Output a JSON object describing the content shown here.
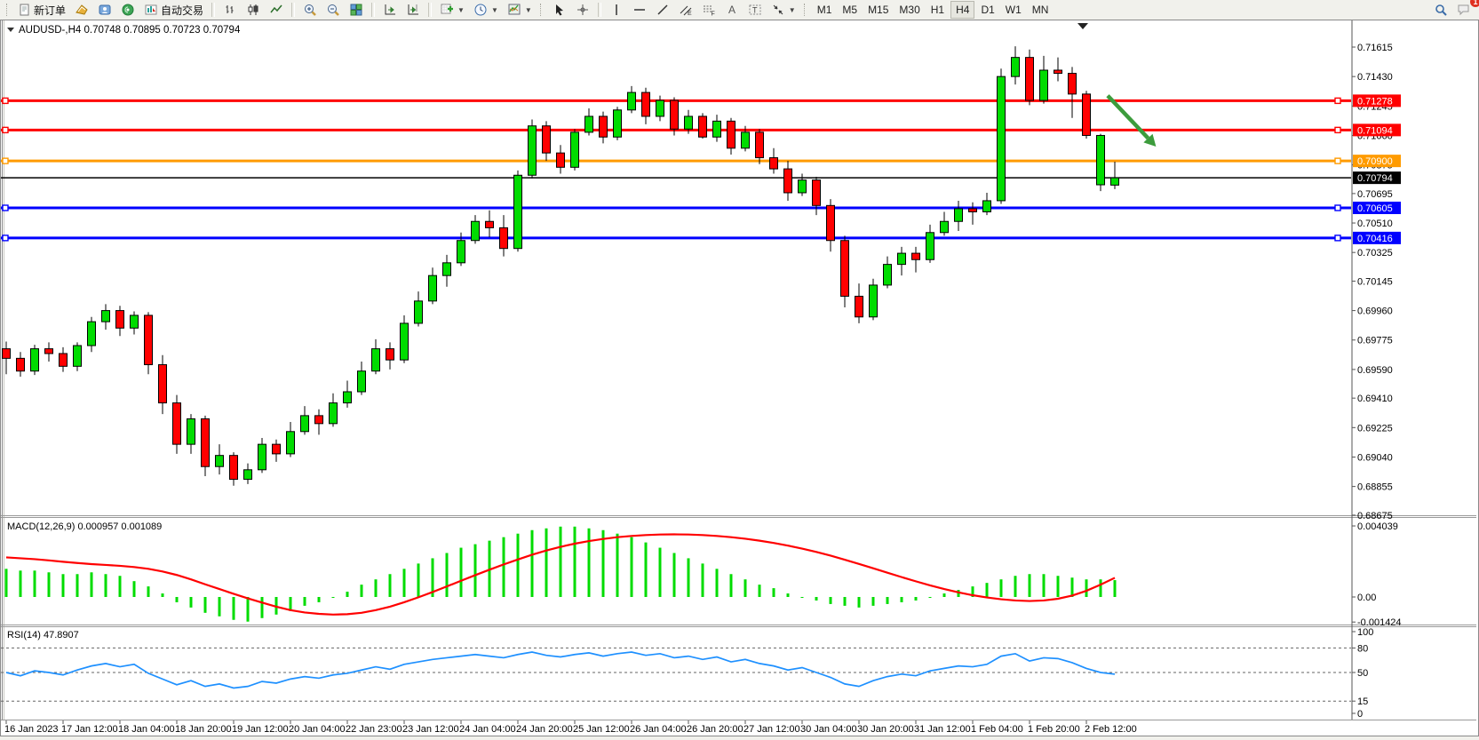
{
  "toolbar": {
    "new_order_label": "新订单",
    "autotrade_label": "自动交易",
    "icons": [
      "new-order",
      "new-chart",
      "profile",
      "signals",
      "autotrade",
      "bar-chart",
      "candlestick-chart",
      "line-chart",
      "zoom-in",
      "zoom-out",
      "tile-windows",
      "auto-scroll",
      "chart-shift",
      "indicators",
      "periods",
      "templates",
      "cursor",
      "crosshair",
      "vertical-line",
      "horizontal-line",
      "trendline",
      "equidistant-channel",
      "fibonacci",
      "text",
      "text-label",
      "arrows",
      "search",
      "notifications"
    ],
    "timeframes": [
      "M1",
      "M5",
      "M15",
      "M30",
      "H1",
      "H4",
      "D1",
      "W1",
      "MN"
    ],
    "active_timeframe": "H4",
    "notification_badge": "1"
  },
  "chart_header": {
    "symbol_info": "AUDUSD-,H4  0.70748 0.70895 0.70723 0.70794"
  },
  "price_axis": {
    "ticks": [
      "0.71615",
      "0.71430",
      "0.71245",
      "0.71060",
      "0.70875",
      "0.70695",
      "0.70510",
      "0.70325",
      "0.70145",
      "0.69960",
      "0.69775",
      "0.69590",
      "0.69410",
      "0.69225",
      "0.69040",
      "0.68855",
      "0.68675"
    ]
  },
  "levels": [
    {
      "label": "0.71278",
      "value": 0.71278,
      "color": "#ff0000",
      "width": 3,
      "handles": true,
      "type": "resistance"
    },
    {
      "label": "0.71094",
      "value": 0.71094,
      "color": "#ff0000",
      "width": 3,
      "handles": true,
      "type": "resistance"
    },
    {
      "label": "0.70900",
      "value": 0.709,
      "color": "#ff9b00",
      "width": 3,
      "handles": true,
      "type": "pivot"
    },
    {
      "label": "0.70794",
      "value": 0.70794,
      "color": "#000000",
      "width": 1.5,
      "handles": false,
      "type": "current-price"
    },
    {
      "label": "0.70605",
      "value": 0.70605,
      "color": "#0000ff",
      "width": 3,
      "handles": true,
      "type": "support"
    },
    {
      "label": "0.70416",
      "value": 0.70416,
      "color": "#0000ff",
      "width": 3,
      "handles": true,
      "type": "support"
    }
  ],
  "macd": {
    "label": "MACD(12,26,9) 0.000957 0.001089",
    "axis": [
      "0.004039",
      "0.00",
      "-0.001424"
    ]
  },
  "rsi": {
    "label": "RSI(14) 47.8907",
    "axis": [
      "100",
      "80",
      "50",
      "15",
      "0"
    ],
    "dashed_levels": [
      80,
      50,
      15
    ]
  },
  "time_axis": {
    "labels": [
      "16 Jan 2023",
      "17 Jan 12:00",
      "18 Jan 04:00",
      "18 Jan 20:00",
      "19 Jan 12:00",
      "20 Jan 04:00",
      "22 Jan 23:00",
      "23 Jan 12:00",
      "24 Jan 04:00",
      "24 Jan 20:00",
      "25 Jan 12:00",
      "26 Jan 04:00",
      "26 Jan 20:00",
      "27 Jan 12:00",
      "30 Jan 04:00",
      "30 Jan 20:00",
      "31 Jan 12:00",
      "1 Feb 04:00",
      "1 Feb 20:00",
      "2 Feb 12:00"
    ],
    "bars_per_label": 4
  },
  "chart_data": {
    "type": "candlestick",
    "title": "AUDUSD-,H4",
    "symbol": "AUDUSD-",
    "timeframe": "H4",
    "last_bar": {
      "open": 0.70748,
      "high": 0.70895,
      "low": 0.70723,
      "close": 0.70794
    },
    "ylim": [
      0.68675,
      0.71615
    ],
    "grid": false,
    "up_color": "#00dc00",
    "down_color": "#ff0000",
    "levels": [
      0.71278,
      0.71094,
      0.709,
      0.70794,
      0.70605,
      0.70416
    ],
    "arrow": {
      "from": {
        "bar": 77.5,
        "price": 0.7131
      },
      "to": {
        "bar": 80.9,
        "price": 0.7099
      },
      "color": "#3c9c3c"
    },
    "ohlc": [
      [
        0.6972,
        0.69765,
        0.6956,
        0.6966
      ],
      [
        0.6966,
        0.697,
        0.69545,
        0.6958
      ],
      [
        0.6958,
        0.69745,
        0.69555,
        0.6972
      ],
      [
        0.6972,
        0.6976,
        0.6964,
        0.6969
      ],
      [
        0.6969,
        0.6973,
        0.69575,
        0.6961
      ],
      [
        0.6961,
        0.6976,
        0.6958,
        0.6974
      ],
      [
        0.6974,
        0.6992,
        0.697,
        0.6989
      ],
      [
        0.6989,
        0.7,
        0.6984,
        0.6996
      ],
      [
        0.6996,
        0.6999,
        0.698,
        0.6985
      ],
      [
        0.6985,
        0.69955,
        0.6981,
        0.6993
      ],
      [
        0.6993,
        0.6995,
        0.6956,
        0.6962
      ],
      [
        0.6962,
        0.6968,
        0.6931,
        0.6938
      ],
      [
        0.6938,
        0.6943,
        0.6906,
        0.6912
      ],
      [
        0.6912,
        0.6931,
        0.6906,
        0.6928
      ],
      [
        0.6928,
        0.693,
        0.6892,
        0.6898
      ],
      [
        0.6898,
        0.6912,
        0.6893,
        0.6905
      ],
      [
        0.6905,
        0.6907,
        0.6886,
        0.689
      ],
      [
        0.689,
        0.69,
        0.6887,
        0.6896
      ],
      [
        0.6896,
        0.6916,
        0.6894,
        0.6912
      ],
      [
        0.6912,
        0.6915,
        0.6901,
        0.6906
      ],
      [
        0.6906,
        0.6926,
        0.6904,
        0.692
      ],
      [
        0.692,
        0.6936,
        0.6918,
        0.693
      ],
      [
        0.693,
        0.6934,
        0.6918,
        0.6925
      ],
      [
        0.6925,
        0.6944,
        0.6923,
        0.6938
      ],
      [
        0.6938,
        0.6952,
        0.6935,
        0.6945
      ],
      [
        0.6945,
        0.6964,
        0.6943,
        0.6958
      ],
      [
        0.6958,
        0.6978,
        0.6956,
        0.6972
      ],
      [
        0.6972,
        0.6976,
        0.6959,
        0.6965
      ],
      [
        0.6965,
        0.6993,
        0.6963,
        0.6988
      ],
      [
        0.6988,
        0.7008,
        0.6986,
        0.7002
      ],
      [
        0.7002,
        0.7023,
        0.7,
        0.7018
      ],
      [
        0.7018,
        0.7031,
        0.7011,
        0.7026
      ],
      [
        0.7026,
        0.7045,
        0.7024,
        0.704
      ],
      [
        0.704,
        0.7056,
        0.7038,
        0.7052
      ],
      [
        0.7052,
        0.7059,
        0.7042,
        0.7048
      ],
      [
        0.7048,
        0.7056,
        0.703,
        0.7035
      ],
      [
        0.7035,
        0.7084,
        0.7033,
        0.7081
      ],
      [
        0.7081,
        0.7116,
        0.7079,
        0.7112
      ],
      [
        0.7112,
        0.7115,
        0.709,
        0.7095
      ],
      [
        0.7095,
        0.71,
        0.7082,
        0.7086
      ],
      [
        0.7086,
        0.711,
        0.7084,
        0.7108
      ],
      [
        0.7108,
        0.7123,
        0.7106,
        0.7118
      ],
      [
        0.7118,
        0.7121,
        0.7101,
        0.7105
      ],
      [
        0.7105,
        0.7124,
        0.7103,
        0.7122
      ],
      [
        0.7122,
        0.7137,
        0.712,
        0.7133
      ],
      [
        0.7133,
        0.7136,
        0.7113,
        0.7118
      ],
      [
        0.7118,
        0.7131,
        0.7115,
        0.7128
      ],
      [
        0.7128,
        0.713,
        0.7106,
        0.711
      ],
      [
        0.711,
        0.7122,
        0.7107,
        0.7118
      ],
      [
        0.7118,
        0.712,
        0.7104,
        0.7105
      ],
      [
        0.7105,
        0.7119,
        0.7102,
        0.7115
      ],
      [
        0.7115,
        0.7117,
        0.7094,
        0.7098
      ],
      [
        0.7098,
        0.7112,
        0.7096,
        0.7108
      ],
      [
        0.7108,
        0.711,
        0.7088,
        0.7092
      ],
      [
        0.7092,
        0.7098,
        0.7082,
        0.7085
      ],
      [
        0.7085,
        0.709,
        0.7065,
        0.707
      ],
      [
        0.707,
        0.7082,
        0.7068,
        0.7078
      ],
      [
        0.7078,
        0.708,
        0.7056,
        0.7062
      ],
      [
        0.7062,
        0.7066,
        0.7033,
        0.704
      ],
      [
        0.704,
        0.7043,
        0.6998,
        0.7005
      ],
      [
        0.7005,
        0.7013,
        0.6988,
        0.6992
      ],
      [
        0.6992,
        0.7016,
        0.699,
        0.7012
      ],
      [
        0.7012,
        0.703,
        0.701,
        0.7025
      ],
      [
        0.7025,
        0.7036,
        0.7018,
        0.7032
      ],
      [
        0.7032,
        0.7036,
        0.702,
        0.7028
      ],
      [
        0.7028,
        0.705,
        0.7026,
        0.7045
      ],
      [
        0.7045,
        0.7058,
        0.7043,
        0.7052
      ],
      [
        0.7052,
        0.7065,
        0.7046,
        0.706
      ],
      [
        0.706,
        0.7064,
        0.705,
        0.7058
      ],
      [
        0.7058,
        0.707,
        0.7056,
        0.7065
      ],
      [
        0.7065,
        0.7148,
        0.7063,
        0.7143
      ],
      [
        0.7143,
        0.7162,
        0.7138,
        0.7155
      ],
      [
        0.7155,
        0.716,
        0.7125,
        0.7128
      ],
      [
        0.7128,
        0.7156,
        0.7126,
        0.7147
      ],
      [
        0.7147,
        0.7155,
        0.714,
        0.7145
      ],
      [
        0.7145,
        0.7149,
        0.7117,
        0.7132
      ],
      [
        0.7132,
        0.7134,
        0.7104,
        0.7106
      ],
      [
        0.7075,
        0.7107,
        0.7071,
        0.7106
      ],
      [
        0.70748,
        0.70895,
        0.70723,
        0.70794
      ]
    ],
    "indicators": [
      {
        "name": "MACD",
        "params": "12,26,9",
        "value": 0.000957,
        "signal_value": 0.001089,
        "ylim": [
          -0.001424,
          0.004039
        ],
        "histogram": [
          0.0016,
          0.0015,
          0.0015,
          0.0014,
          0.0013,
          0.0013,
          0.0014,
          0.0013,
          0.0012,
          0.0009,
          0.0006,
          0.0002,
          -0.0003,
          -0.0006,
          -0.0009,
          -0.0011,
          -0.0013,
          -0.0014,
          -0.0012,
          -0.001,
          -0.0008,
          -0.0005,
          -0.0003,
          0.0,
          0.0003,
          0.0007,
          0.001,
          0.0013,
          0.0016,
          0.0019,
          0.0022,
          0.0025,
          0.0028,
          0.003,
          0.0032,
          0.0034,
          0.0036,
          0.0038,
          0.0039,
          0.004,
          0.004,
          0.0039,
          0.0038,
          0.0036,
          0.0034,
          0.0031,
          0.0028,
          0.0025,
          0.0022,
          0.0019,
          0.0016,
          0.0013,
          0.001,
          0.0007,
          0.0005,
          0.0002,
          0.0,
          -0.0002,
          -0.0004,
          -0.0005,
          -0.0006,
          -0.0005,
          -0.0004,
          -0.0003,
          -0.0002,
          0.0,
          0.0002,
          0.0004,
          0.0006,
          0.0008,
          0.001,
          0.0012,
          0.0013,
          0.0013,
          0.0012,
          0.0011,
          0.001,
          0.001,
          0.000957
        ],
        "signal": [
          0.00225,
          0.0022,
          0.00215,
          0.00208,
          0.002,
          0.00193,
          0.00187,
          0.00182,
          0.00177,
          0.0017,
          0.0016,
          0.00145,
          0.00125,
          0.001,
          0.00072,
          0.00045,
          0.00018,
          -8e-05,
          -0.00032,
          -0.00055,
          -0.00075,
          -0.00088,
          -0.00096,
          -0.001,
          -0.00098,
          -0.0009,
          -0.00075,
          -0.00055,
          -0.0003,
          -2e-05,
          0.00028,
          0.0006,
          0.00092,
          0.00124,
          0.00155,
          0.00185,
          0.00213,
          0.0024,
          0.00264,
          0.00285,
          0.00303,
          0.00318,
          0.0033,
          0.0034,
          0.00347,
          0.00352,
          0.00355,
          0.00356,
          0.00355,
          0.00352,
          0.00347,
          0.0034,
          0.00331,
          0.0032,
          0.00307,
          0.00292,
          0.00275,
          0.00256,
          0.00235,
          0.00212,
          0.00188,
          0.00163,
          0.00138,
          0.00113,
          0.00089,
          0.00066,
          0.00045,
          0.00026,
          0.0001,
          -3e-05,
          -0.00013,
          -0.0002,
          -0.00023,
          -0.0002,
          -0.0001,
          8e-05,
          0.00035,
          0.0007,
          0.001089
        ]
      },
      {
        "name": "RSI",
        "params": "14",
        "value": 47.8907,
        "levels": [
          80,
          50,
          15
        ],
        "ylim": [
          0,
          100
        ],
        "series": [
          50,
          46,
          52,
          50,
          47,
          53,
          58,
          61,
          57,
          60,
          49,
          42,
          35,
          40,
          33,
          36,
          31,
          33,
          39,
          37,
          42,
          45,
          43,
          47,
          49,
          53,
          57,
          54,
          60,
          63,
          66,
          68,
          70,
          72,
          70,
          68,
          72,
          75,
          71,
          69,
          72,
          74,
          70,
          73,
          75,
          71,
          73,
          68,
          70,
          66,
          69,
          63,
          66,
          61,
          58,
          53,
          56,
          50,
          44,
          36,
          33,
          40,
          45,
          48,
          46,
          52,
          55,
          58,
          57,
          60,
          70,
          73,
          64,
          68,
          67,
          62,
          55,
          50,
          47.89
        ]
      }
    ]
  }
}
